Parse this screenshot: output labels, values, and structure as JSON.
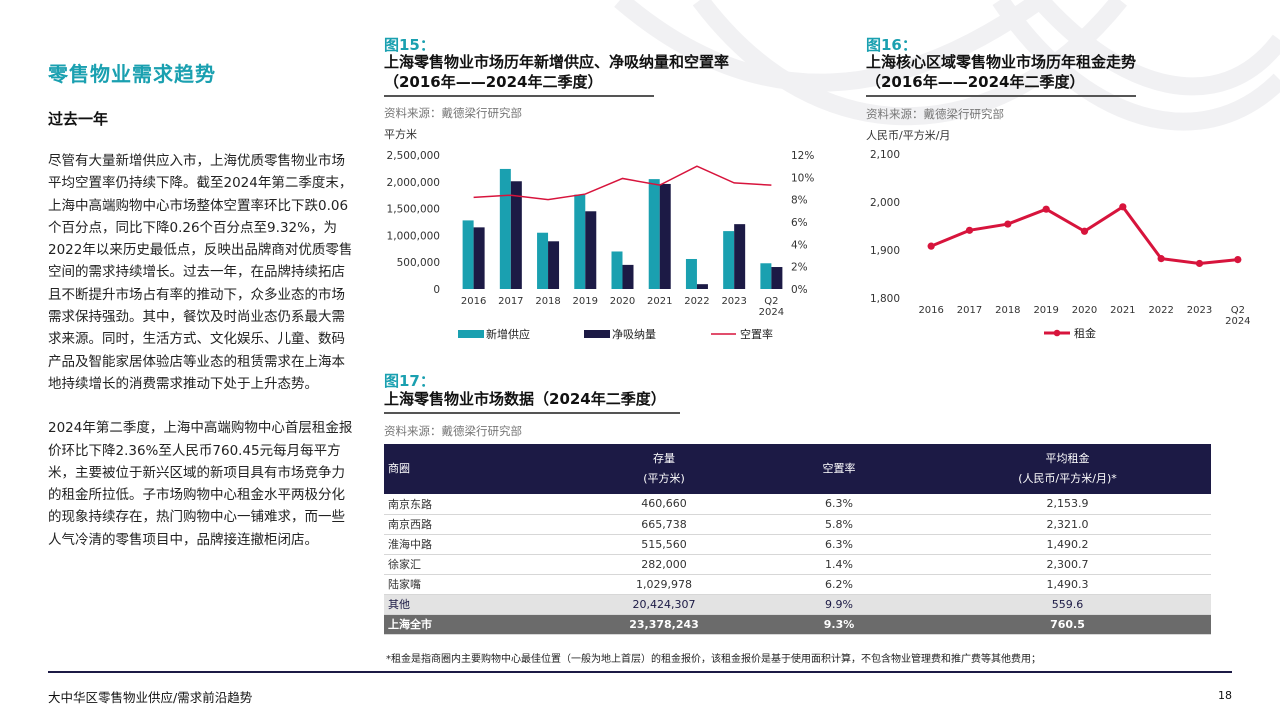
{
  "left": {
    "section_title": "零售物业需求趋势",
    "subhead": "过去一年",
    "paragraph1": "尽管有大量新增供应入市，上海优质零售物业市场平均空置率仍持续下降。截至2024年第二季度末，上海中高端购物中心市场整体空置率环比下跌0.06个百分点，同比下降0.26个百分点至9.32%，为2022年以来历史最低点，反映出品牌商对优质零售空间的需求持续增长。过去一年，在品牌持续拓店且不断提升市场占有率的推动下，众多业态的市场需求保持强劲。其中，餐饮及时尚业态仍系最大需求来源。同时，生活方式、文化娱乐、儿童、数码产品及智能家居体验店等业态的租赁需求在上海本地持续增长的消费需求推动下处于上升态势。",
    "paragraph2": "2024年第二季度，上海中高端购物中心首层租金报价环比下降2.36%至人民币760.45元每月每平方米，主要被位于新兴区域的新项目具有市场竞争力的租金所拉低。子市场购物中心租金水平两极分化的现象持续存在，热门购物中心一铺难求，而一些人气冷清的零售项目中，品牌接连撤柜闭店。"
  },
  "fig15": {
    "label": "图15：",
    "title_line1": "上海零售物业市场历年新增供应、净吸纳量和空置率",
    "title_line2": "（2016年——2024年二季度）",
    "source": "资料来源：戴德梁行研究部",
    "unit": "平方米"
  },
  "fig16": {
    "label": "图16：",
    "title_line1": "上海核心区域零售物业市场历年租金走势",
    "title_line2": "（2016年——2024年二季度）",
    "source": "资料来源：戴德梁行研究部",
    "unit": "人民币/平方米/月"
  },
  "fig17": {
    "label": "图17：",
    "title": "上海零售物业市场数据（2024年二季度）",
    "source": "资料来源：戴德梁行研究部",
    "headers": {
      "col1": "商圈",
      "col2_line1": "存量",
      "col2_line2": "(平方米)",
      "col3": "空置率",
      "col4_line1": "平均租金",
      "col4_line2": "(人民币/平方米/月)*"
    },
    "rows": [
      {
        "name": "南京东路",
        "stock": "460,660",
        "vacancy": "6.3%",
        "rent": "2,153.9"
      },
      {
        "name": "南京西路",
        "stock": "665,738",
        "vacancy": "5.8%",
        "rent": "2,321.0"
      },
      {
        "name": "淮海中路",
        "stock": "515,560",
        "vacancy": "6.3%",
        "rent": "1,490.2"
      },
      {
        "name": "徐家汇",
        "stock": "282,000",
        "vacancy": "1.4%",
        "rent": "2,300.7"
      },
      {
        "name": "陆家嘴",
        "stock": "1,029,978",
        "vacancy": "6.2%",
        "rent": "1,490.3"
      },
      {
        "name": "其他",
        "stock": "20,424,307",
        "vacancy": "9.9%",
        "rent": "559.6"
      },
      {
        "name": "上海全市",
        "stock": "23,378,243",
        "vacancy": "9.3%",
        "rent": "760.5"
      }
    ],
    "footnote": "*租金是指商圈内主要购物中心最佳位置（一般为地上首层）的租金报价，该租金报价是基于使用面积计算，不包含物业管理费和推广费等其他费用；"
  },
  "footer": {
    "left": "大中华区零售物业供应/需求前沿趋势",
    "page": "18"
  },
  "chart_data": [
    {
      "type": "bar",
      "categories": [
        "2016",
        "2017",
        "2018",
        "2019",
        "2020",
        "2021",
        "2022",
        "2023",
        "Q2 2024"
      ],
      "series": [
        {
          "name": "新增供应",
          "values": [
            1280000,
            2240000,
            1050000,
            1760000,
            700000,
            2050000,
            560000,
            1080000,
            480000
          ],
          "color": "#1aa0b0"
        },
        {
          "name": "净吸纳量",
          "values": [
            1150000,
            2010000,
            890000,
            1450000,
            450000,
            1960000,
            90000,
            1210000,
            410000
          ],
          "color": "#1c1a45"
        },
        {
          "name": "空置率",
          "values": [
            8.2,
            8.4,
            8.0,
            8.5,
            9.9,
            9.3,
            11.0,
            9.5,
            9.3
          ],
          "color": "#d7143c",
          "axis": "right",
          "kind": "line"
        }
      ],
      "ylim": [
        0,
        2500000
      ],
      "yticks": [
        "2,500,000",
        "2,000,000",
        "1,500,000",
        "1,000,000",
        "500,000",
        "0"
      ],
      "y2lim": [
        0,
        12
      ],
      "y2ticks": [
        "12%",
        "10%",
        "8%",
        "6%",
        "4%",
        "2%",
        "0%"
      ],
      "legend": "bottom"
    },
    {
      "type": "line",
      "categories": [
        "2016",
        "2017",
        "2018",
        "2019",
        "2020",
        "2021",
        "2022",
        "2023",
        "Q2 2024"
      ],
      "series": [
        {
          "name": "租金",
          "values": [
            1908,
            1941,
            1954,
            1985,
            1939,
            1990,
            1882,
            1872,
            1880
          ],
          "color": "#d7143c"
        }
      ],
      "ylim": [
        1800,
        2100
      ],
      "yticks": [
        "2,100",
        "2,000",
        "1,900",
        "1,800"
      ],
      "legend": "bottom"
    }
  ]
}
